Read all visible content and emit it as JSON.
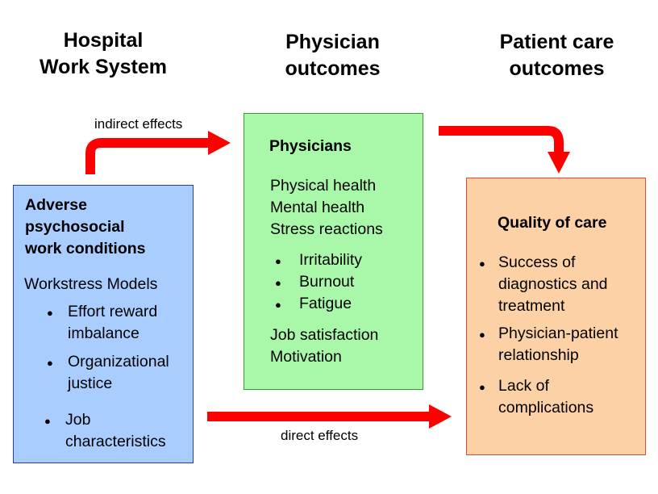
{
  "headers": {
    "work_system": "Hospital\nWork System",
    "physician_outcomes": "Physician\noutcomes",
    "patient_outcomes": "Patient care\noutcomes"
  },
  "left_box": {
    "title": "Adverse\npsychosocial\nwork conditions",
    "subtitle": "Workstress Models",
    "items": [
      "Effort reward\nimbalance",
      "Organizational\njustice",
      "Job\ncharacteristics"
    ]
  },
  "middle_box": {
    "title": "Physicians",
    "lines": [
      "Physical health",
      "Mental health",
      "Stress reactions"
    ],
    "items": [
      "Irritability",
      "Burnout",
      "Fatigue"
    ],
    "footer_lines": [
      "Job satisfaction",
      "Motivation"
    ]
  },
  "right_box": {
    "title": "Quality of care",
    "items": [
      "Success of\ndiagnostics and\ntreatment",
      "Physician-patient\nrelationship",
      "Lack of\ncomplications"
    ]
  },
  "arrows": {
    "indirect_label": "indirect effects",
    "direct_label": "direct effects",
    "color": "#ff0000"
  },
  "colors": {
    "left_fill": "#a9cdff",
    "middle_fill": "#a9f7a9",
    "right_fill": "#fcd1a5"
  }
}
